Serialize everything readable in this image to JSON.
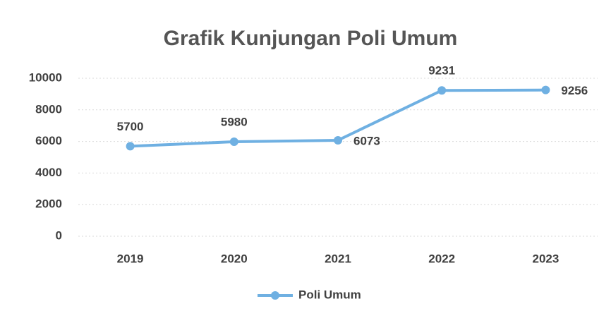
{
  "chart_data": {
    "type": "line",
    "title": "Grafik Kunjungan Poli Umum",
    "categories": [
      "2019",
      "2020",
      "2021",
      "2022",
      "2023"
    ],
    "series": [
      {
        "name": "Poli Umum",
        "color": "#6fb0e2",
        "values": [
          5700,
          5980,
          6073,
          9231,
          9256
        ]
      }
    ],
    "ylim": [
      0,
      10000
    ],
    "yticks": [
      0,
      2000,
      4000,
      6000,
      8000,
      10000
    ],
    "grid": true,
    "legend": "bottom"
  }
}
